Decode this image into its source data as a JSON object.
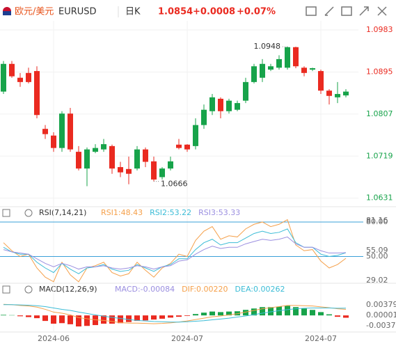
{
  "header": {
    "pair": "欧元/美元",
    "symbol": "EURUSD",
    "period": "日K",
    "price": 1.0854,
    "change": "+0.0008",
    "change_pct": "+0.07%"
  },
  "chart_data": [
    {
      "type": "candlestick",
      "up_color": "#17a34a",
      "down_color": "#ea2a20",
      "categories": [
        null,
        null,
        null,
        null,
        null,
        null,
        "2024-06",
        null,
        null,
        null,
        null,
        null,
        null,
        null,
        null,
        null,
        null,
        null,
        null,
        null,
        null,
        null,
        "2024-07",
        null,
        null,
        null,
        null,
        null,
        null,
        null,
        null,
        null,
        null,
        null,
        null,
        null,
        null,
        null,
        "2024-07",
        null,
        null,
        null
      ],
      "open": [
        1.0854,
        1.0912,
        1.0883,
        1.0893,
        1.0897,
        1.0776,
        1.0762,
        1.0736,
        1.0808,
        1.0728,
        1.0693,
        1.0728,
        1.0733,
        1.074,
        1.0696,
        1.0692,
        1.0693,
        1.0733,
        1.0708,
        1.0675,
        1.0693,
        1.0743,
        1.0743,
        1.074,
        1.0784,
        1.0813,
        1.0839,
        1.0813,
        1.0816,
        1.0835,
        1.0874,
        1.0883,
        1.09,
        1.0904,
        1.0904,
        1.0947,
        1.0904,
        1.09,
        1.0897,
        1.0856,
        1.0842,
        1.0846
      ],
      "high": [
        1.0918,
        1.0918,
        1.0893,
        1.0904,
        1.0907,
        1.0784,
        1.0769,
        1.0813,
        1.082,
        1.074,
        1.0737,
        1.0744,
        1.0755,
        1.0743,
        1.0707,
        1.0718,
        1.074,
        1.0737,
        1.0718,
        1.0696,
        1.0718,
        1.0755,
        1.0744,
        1.0798,
        1.0827,
        1.0849,
        1.0842,
        1.0839,
        1.0835,
        1.0883,
        1.0912,
        1.0922,
        1.0912,
        1.093,
        1.0948,
        1.0948,
        1.0907,
        1.0904,
        1.09,
        1.0859,
        1.0874,
        1.0859
      ],
      "low": [
        1.0849,
        1.0883,
        1.0864,
        1.0871,
        1.0798,
        1.0755,
        1.0728,
        1.0728,
        1.0728,
        1.0689,
        1.0656,
        1.0725,
        1.0728,
        1.0682,
        1.0675,
        1.066,
        1.0689,
        1.0696,
        1.0666,
        1.067,
        1.0689,
        1.0733,
        1.0728,
        1.0733,
        1.0776,
        1.0805,
        1.0798,
        1.0808,
        1.0813,
        1.083,
        1.0871,
        1.0874,
        1.0897,
        1.09,
        1.09,
        1.0903,
        1.0886,
        1.0897,
        1.0849,
        1.0827,
        1.083,
        1.0842
      ],
      "close": [
        1.0912,
        1.0886,
        1.0874,
        1.0874,
        1.0805,
        1.0765,
        1.0736,
        1.0808,
        1.0733,
        1.0693,
        1.0733,
        1.0736,
        1.0744,
        1.0693,
        1.0685,
        1.0682,
        1.0733,
        1.0707,
        1.067,
        1.0693,
        1.0708,
        1.0736,
        1.0733,
        1.0784,
        1.0816,
        1.0842,
        1.0813,
        1.0835,
        1.083,
        1.0874,
        1.0907,
        1.0912,
        1.0907,
        1.0922,
        1.0947,
        1.0907,
        1.0893,
        1.0903,
        1.0856,
        1.0845,
        1.0849,
        1.0854
      ],
      "annotations": [
        1.0948,
        1.0666
      ],
      "ylim": [
        1.0616,
        1.1002
      ],
      "yticks": [
        1.0983,
        1.0895,
        1.0807,
        1.0719,
        1.0631
      ],
      "grid": true
    },
    {
      "type": "line",
      "title": "RSI(7,14,21)",
      "ref_color": "#3aa0d8",
      "ref_lines": [
        80,
        50
      ],
      "series": [
        {
          "name": "RSI1:48.43",
          "color": "#f5a04a",
          "values": [
            62,
            55,
            50,
            52,
            40,
            32,
            28,
            45,
            34,
            28,
            40,
            42,
            45,
            36,
            33,
            35,
            45,
            38,
            32,
            40,
            44,
            52,
            50,
            64,
            72,
            76,
            65,
            68,
            67,
            74,
            78,
            80,
            76,
            78,
            82,
            60,
            55,
            56,
            46,
            40,
            43,
            48.43
          ]
        },
        {
          "name": "RSI2:53.22",
          "color": "#3bbcd6",
          "values": [
            58,
            54,
            52,
            52,
            45,
            40,
            36,
            44,
            39,
            35,
            40,
            41,
            43,
            39,
            37,
            38,
            43,
            40,
            37,
            41,
            43,
            48,
            48,
            56,
            62,
            65,
            60,
            62,
            62,
            66,
            70,
            72,
            70,
            71,
            74,
            62,
            58,
            58,
            52,
            50,
            51,
            53.22
          ]
        },
        {
          "name": "RSI3:53.33",
          "color": "#9b8fe0",
          "values": [
            56,
            54,
            53,
            52,
            48,
            44,
            41,
            44,
            42,
            39,
            41,
            41,
            42,
            40,
            39,
            40,
            42,
            41,
            39,
            41,
            42,
            46,
            47,
            52,
            56,
            59,
            57,
            58,
            58,
            61,
            63,
            65,
            64,
            65,
            67,
            61,
            58,
            58,
            55,
            53,
            53,
            53.33
          ]
        }
      ],
      "ylim": [
        28.5,
        82.4
      ],
      "yticks": [
        {
          "value": 80,
          "label": "80.00"
        },
        81.16,
        55.09,
        {
          "value": 50,
          "label": "50.00"
        },
        29.02
      ]
    },
    {
      "type": "macd",
      "title": "MACD(12,26,9)",
      "up_color": "#17a34a",
      "down_color": "#ea2a20",
      "series": [
        {
          "name": "MACD:-0.00084",
          "color": "#9b8fe0",
          "values": [
            0.0002,
            0.0001,
            -0.0003,
            -0.0006,
            -0.001,
            -0.002,
            -0.003,
            -0.0028,
            -0.0032,
            -0.004,
            -0.0038,
            -0.0035,
            -0.003,
            -0.003,
            -0.0028,
            -0.0024,
            -0.002,
            -0.0018,
            -0.0015,
            -0.0012,
            -0.0008,
            -0.0005,
            -0.0002,
            0.0005,
            0.001,
            0.0014,
            0.0012,
            0.0014,
            0.0015,
            0.002,
            0.0025,
            0.003,
            0.003,
            0.0032,
            0.0035,
            0.003,
            0.0025,
            0.002,
            0.0012,
            0.0004,
            -0.0005,
            -0.00084
          ]
        },
        {
          "name": "DIF:0.00220",
          "color": "#f5a04a",
          "values": [
            0.004,
            0.0039,
            0.0036,
            0.0034,
            0.003,
            0.0022,
            0.0012,
            0.0008,
            0.0002,
            -0.0008,
            -0.0012,
            -0.0016,
            -0.0018,
            -0.0022,
            -0.0026,
            -0.0028,
            -0.0028,
            -0.0029,
            -0.003,
            -0.0029,
            -0.0027,
            -0.0024,
            -0.002,
            -0.0015,
            -0.001,
            -0.0005,
            -0.0002,
            0.0002,
            0.0006,
            0.0012,
            0.0018,
            0.0024,
            0.0028,
            0.0032,
            0.0036,
            0.0036,
            0.0035,
            0.0034,
            0.0031,
            0.0028,
            0.0024,
            0.0022
          ]
        },
        {
          "name": "DEA:0.00262",
          "color": "#3bbcd6",
          "values": [
            0.0039,
            0.0039,
            0.0038,
            0.0037,
            0.0035,
            0.0032,
            0.0027,
            0.0022,
            0.0018,
            0.0012,
            0.0007,
            0.0002,
            -0.0003,
            -0.0007,
            -0.0011,
            -0.0015,
            -0.0018,
            -0.002,
            -0.0022,
            -0.0023,
            -0.0024,
            -0.0024,
            -0.0023,
            -0.0021,
            -0.0019,
            -0.0016,
            -0.0013,
            -0.001,
            -0.0006,
            -0.0002,
            0.0003,
            0.0008,
            0.0013,
            0.0017,
            0.0021,
            0.0024,
            0.0026,
            0.0027,
            0.0027,
            0.0027,
            0.0026,
            0.00262
          ]
        }
      ],
      "ylim": [
        -0.0055,
        0.0071
      ],
      "yticks": [
        0.00379,
        1e-05,
        -0.00377
      ]
    }
  ]
}
